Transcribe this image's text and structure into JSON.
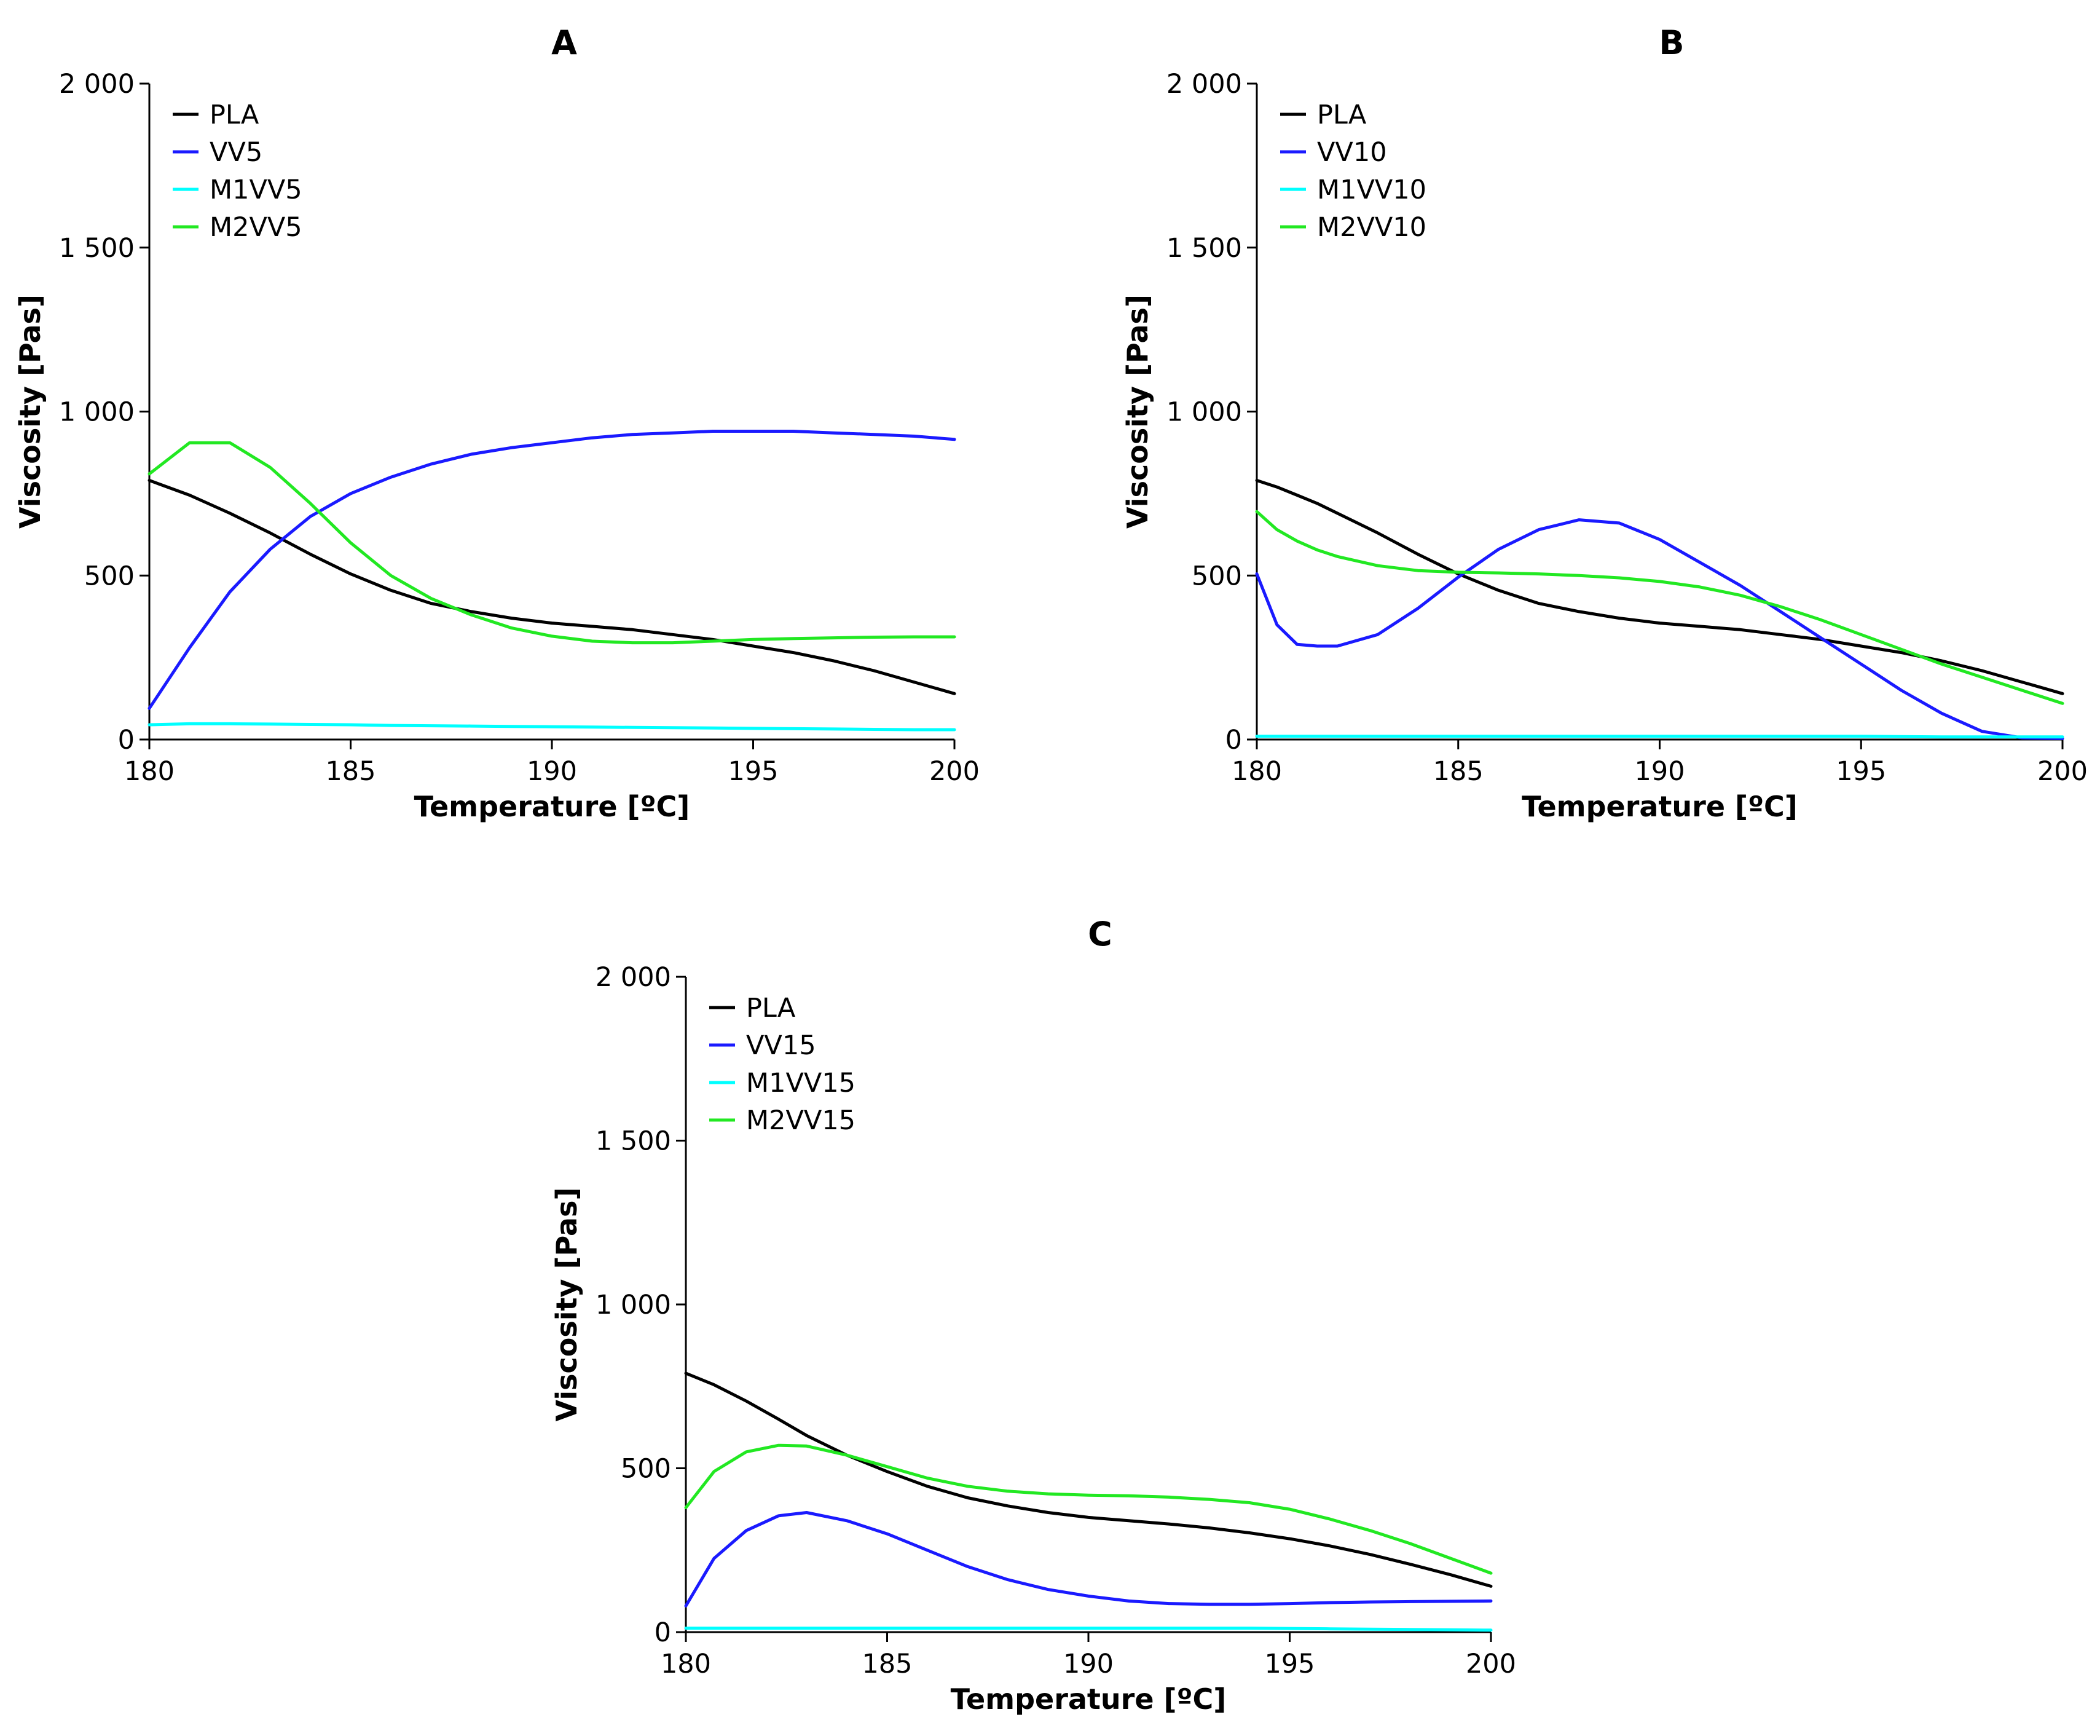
{
  "chart_data": [
    {
      "type": "line",
      "title": "A",
      "xlabel": "Temperature [ºC]",
      "ylabel": "Viscosity [Pas]",
      "xlim": [
        180,
        200
      ],
      "ylim": [
        0,
        2000
      ],
      "xticks": [
        {
          "value": 180,
          "label": "180"
        },
        {
          "value": 185,
          "label": "185"
        },
        {
          "value": 190,
          "label": "190"
        },
        {
          "value": 195,
          "label": "195"
        },
        {
          "value": 200,
          "label": "200"
        }
      ],
      "yticks": [
        {
          "value": 0,
          "label": "0"
        },
        {
          "value": 500,
          "label": "500"
        },
        {
          "value": 1000,
          "label": "1 000"
        },
        {
          "value": 1500,
          "label": "1 500"
        },
        {
          "value": 2000,
          "label": "2 000"
        }
      ],
      "legend_position": "top-left",
      "x": [
        180,
        181,
        182,
        183,
        184,
        185,
        186,
        187,
        188,
        189,
        190,
        191,
        192,
        193,
        194,
        195,
        196,
        197,
        198,
        199,
        200
      ],
      "series": [
        {
          "name": "PLA",
          "color": "#000000",
          "values": [
            790,
            745,
            690,
            630,
            565,
            505,
            455,
            415,
            390,
            370,
            355,
            345,
            335,
            320,
            305,
            285,
            265,
            240,
            210,
            175,
            140
          ]
        },
        {
          "name": "VV5",
          "color": "#1a1aff",
          "values": [
            95,
            280,
            450,
            580,
            680,
            750,
            800,
            840,
            870,
            890,
            905,
            920,
            930,
            935,
            940,
            940,
            940,
            935,
            930,
            925,
            915
          ]
        },
        {
          "name": "M1VV5",
          "color": "#00ffff",
          "values": [
            45,
            48,
            48,
            47,
            46,
            45,
            43,
            42,
            41,
            40,
            39,
            38,
            37,
            36,
            35,
            34,
            33,
            32,
            31,
            30,
            30
          ]
        },
        {
          "name": "M2VV5",
          "color": "#22e822",
          "values": [
            810,
            905,
            905,
            830,
            720,
            600,
            500,
            430,
            380,
            340,
            315,
            300,
            295,
            295,
            300,
            305,
            308,
            310,
            312,
            313,
            313
          ]
        }
      ]
    },
    {
      "type": "line",
      "title": "B",
      "xlabel": "Temperature [ºC]",
      "ylabel": "Viscosity [Pas]",
      "xlim": [
        180,
        200
      ],
      "ylim": [
        0,
        2000
      ],
      "xticks": [
        {
          "value": 180,
          "label": "180"
        },
        {
          "value": 185,
          "label": "185"
        },
        {
          "value": 190,
          "label": "190"
        },
        {
          "value": 195,
          "label": "195"
        },
        {
          "value": 200,
          "label": "200"
        }
      ],
      "yticks": [
        {
          "value": 0,
          "label": "0"
        },
        {
          "value": 500,
          "label": "500"
        },
        {
          "value": 1000,
          "label": "1 000"
        },
        {
          "value": 1500,
          "label": "1 500"
        },
        {
          "value": 2000,
          "label": "2 000"
        }
      ],
      "legend_position": "top-left",
      "x": [
        180,
        180.5,
        181,
        181.5,
        182,
        183,
        184,
        185,
        186,
        187,
        188,
        189,
        190,
        191,
        192,
        193,
        194,
        195,
        196,
        197,
        198,
        199,
        200
      ],
      "series": [
        {
          "name": "PLA",
          "color": "#000000",
          "values": [
            790,
            770,
            745,
            720,
            690,
            630,
            565,
            505,
            455,
            415,
            390,
            370,
            355,
            345,
            335,
            320,
            305,
            285,
            265,
            240,
            210,
            175,
            140
          ]
        },
        {
          "name": "VV10",
          "color": "#1a1aff",
          "values": [
            505,
            350,
            290,
            285,
            285,
            320,
            400,
            495,
            580,
            640,
            670,
            660,
            610,
            540,
            470,
            390,
            310,
            230,
            150,
            80,
            25,
            5,
            3
          ]
        },
        {
          "name": "M1VV10",
          "color": "#00ffff",
          "values": [
            10,
            10,
            10,
            10,
            10,
            10,
            10,
            10,
            10,
            10,
            10,
            10,
            10,
            10,
            10,
            10,
            10,
            10,
            9,
            8,
            8,
            8,
            8
          ]
        },
        {
          "name": "M2VV10",
          "color": "#22e822",
          "values": [
            695,
            640,
            605,
            578,
            558,
            530,
            515,
            510,
            508,
            505,
            500,
            493,
            482,
            465,
            440,
            405,
            365,
            320,
            275,
            230,
            190,
            150,
            110
          ]
        }
      ]
    },
    {
      "type": "line",
      "title": "C",
      "xlabel": "Temperature [ºC]",
      "ylabel": "Viscosity [Pas]",
      "xlim": [
        180,
        200
      ],
      "ylim": [
        0,
        2000
      ],
      "xticks": [
        {
          "value": 180,
          "label": "180"
        },
        {
          "value": 185,
          "label": "185"
        },
        {
          "value": 190,
          "label": "190"
        },
        {
          "value": 195,
          "label": "195"
        },
        {
          "value": 200,
          "label": "200"
        }
      ],
      "yticks": [
        {
          "value": 0,
          "label": "0"
        },
        {
          "value": 500,
          "label": "500"
        },
        {
          "value": 1000,
          "label": "1 000"
        },
        {
          "value": 1500,
          "label": "1 500"
        },
        {
          "value": 2000,
          "label": "2 000"
        }
      ],
      "legend_position": "top-left",
      "x": [
        180,
        180.7,
        181.5,
        182.3,
        183,
        184,
        185,
        186,
        187,
        188,
        189,
        190,
        191,
        192,
        193,
        194,
        195,
        196,
        197,
        198,
        199,
        200
      ],
      "series": [
        {
          "name": "PLA",
          "color": "#000000",
          "values": [
            790,
            755,
            705,
            650,
            600,
            540,
            490,
            445,
            410,
            385,
            365,
            350,
            340,
            330,
            318,
            303,
            285,
            263,
            237,
            207,
            175,
            140
          ]
        },
        {
          "name": "VV15",
          "color": "#1a1aff",
          "values": [
            80,
            225,
            310,
            355,
            365,
            340,
            300,
            250,
            200,
            160,
            130,
            110,
            95,
            87,
            85,
            85,
            87,
            90,
            92,
            93,
            94,
            95
          ]
        },
        {
          "name": "M1VV15",
          "color": "#00ffff",
          "values": [
            12,
            12,
            12,
            12,
            12,
            12,
            12,
            12,
            12,
            12,
            12,
            12,
            12,
            12,
            12,
            12,
            11,
            10,
            9,
            8,
            7,
            6
          ]
        },
        {
          "name": "M2VV15",
          "color": "#22e822",
          "values": [
            380,
            490,
            550,
            570,
            568,
            540,
            505,
            470,
            445,
            430,
            422,
            418,
            416,
            412,
            405,
            395,
            375,
            345,
            310,
            270,
            225,
            180
          ]
        }
      ]
    }
  ]
}
